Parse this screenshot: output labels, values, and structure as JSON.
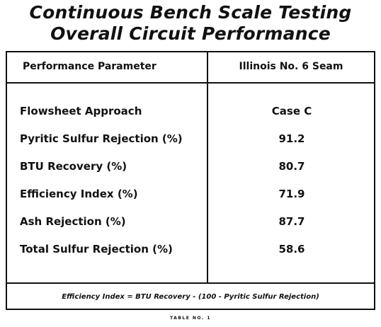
{
  "title": {
    "line1": "Continuous Bench Scale Testing",
    "line2": "Overall Circuit Performance"
  },
  "table": {
    "headers": {
      "parameter": "Performance Parameter",
      "seam": "Illinois No. 6 Seam"
    },
    "rows": [
      {
        "label": "Flowsheet Approach",
        "value": "Case C"
      },
      {
        "label": "Pyritic Sulfur Rejection (%)",
        "value": "91.2"
      },
      {
        "label": "BTU Recovery (%)",
        "value": "80.7"
      },
      {
        "label": "Efficiency Index (%)",
        "value": "71.9"
      },
      {
        "label": "Ash Rejection (%)",
        "value": "87.7"
      },
      {
        "label": "Total Sulfur Rejection (%)",
        "value": "58.6"
      }
    ],
    "footnote": "Efficiency Index = BTU Recovery - (100 - Pyritic Sulfur Rejection)"
  },
  "caption": "TABLE NO. 1"
}
